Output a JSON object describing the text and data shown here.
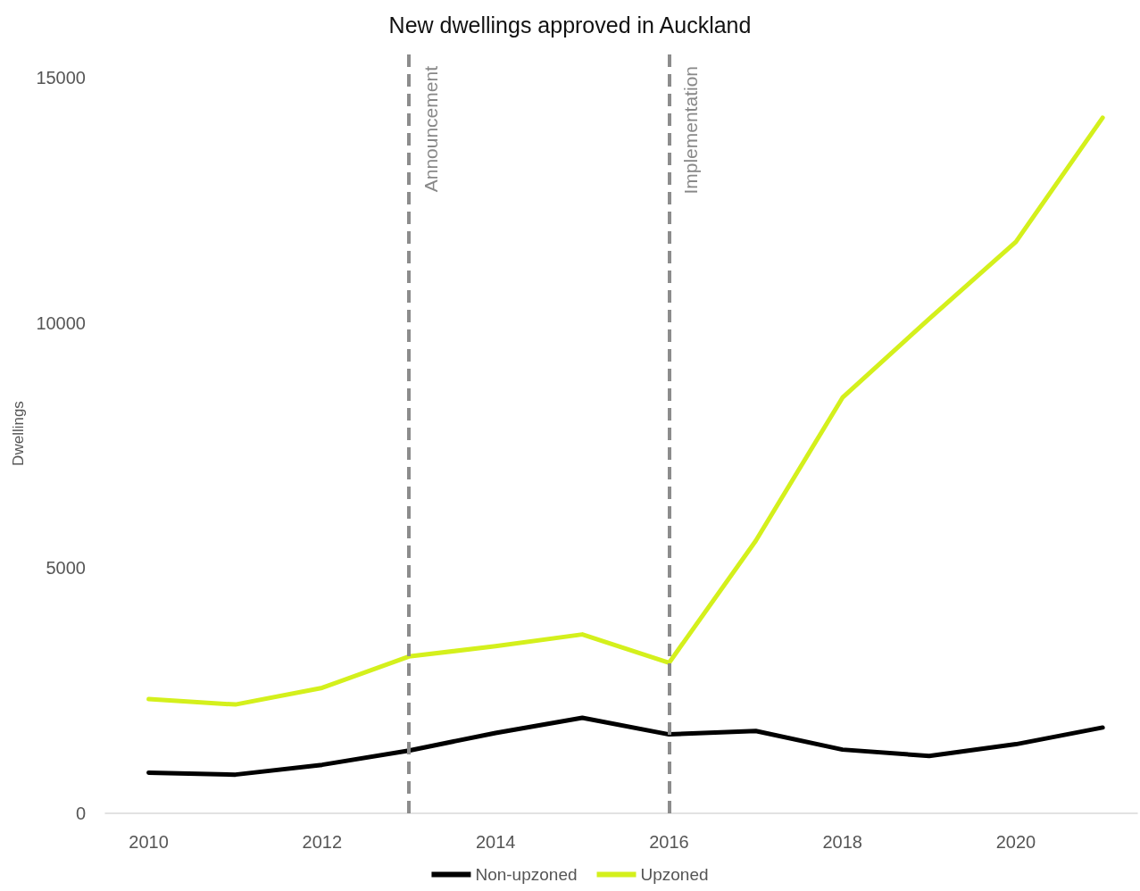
{
  "chart_data": {
    "type": "line",
    "title": "New dwellings approved in Auckland",
    "ylabel": "Dwellings",
    "x": [
      2010,
      2011,
      2012,
      2013,
      2014,
      2015,
      2016,
      2017,
      2018,
      2019,
      2020,
      2021
    ],
    "series": [
      {
        "name": "Non-upzoned",
        "color": "#000000",
        "values": [
          830,
          790,
          990,
          1280,
          1640,
          1950,
          1610,
          1680,
          1300,
          1170,
          1410,
          1750
        ]
      },
      {
        "name": "Upzoned",
        "color": "#d4f01c",
        "values": [
          2330,
          2220,
          2560,
          3200,
          3410,
          3650,
          3070,
          5560,
          8480,
          10090,
          11660,
          14190
        ]
      }
    ],
    "xlim": [
      2009.5,
      2021.4
    ],
    "xticks": [
      2010,
      2012,
      2014,
      2016,
      2018,
      2020
    ],
    "ylim": [
      0,
      15500
    ],
    "yticks": [
      0,
      5000,
      10000,
      15000
    ],
    "ref_lines": [
      {
        "axis": "x",
        "value": 2013,
        "label": "Announcement",
        "color": "#8c8c8c",
        "line_style": "dashed"
      },
      {
        "axis": "x",
        "value": 2016,
        "label": "Implementation",
        "color": "#8c8c8c",
        "line_style": "dashed"
      }
    ],
    "grid": false,
    "legend": "bottom",
    "marker": "none",
    "line_style": "solid"
  }
}
